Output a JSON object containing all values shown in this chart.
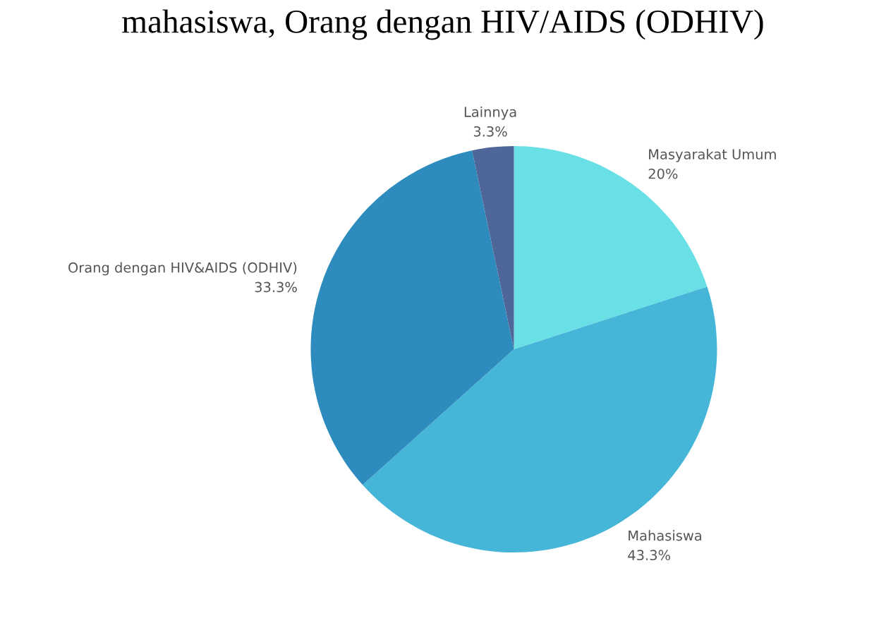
{
  "chart_data": {
    "type": "pie",
    "title": "mahasiswa, Orang dengan HIV/AIDS (ODHIV)",
    "categories": [
      "Masyarakat Umum",
      "Mahasiswa",
      "Orang dengan HIV&AIDS (ODHIV)",
      "Lainnya"
    ],
    "values": [
      20,
      43.3,
      33.3,
      3.3
    ],
    "value_labels": [
      "20%",
      "43.3%",
      "33.3%",
      "3.3%"
    ],
    "colors": [
      "#68e0e6",
      "#45b5d8",
      "#2d8bbd",
      "#4f6798"
    ]
  }
}
